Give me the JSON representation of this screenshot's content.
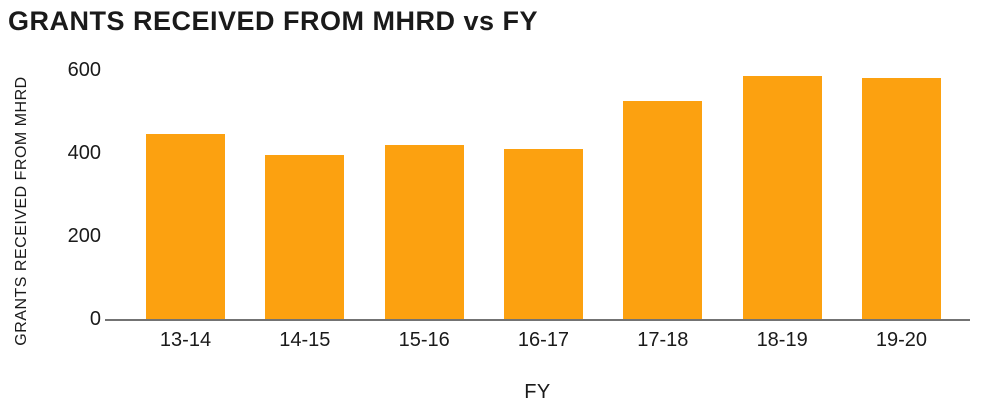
{
  "chart_data": {
    "type": "bar",
    "title": "GRANTS RECEIVED FROM MHRD vs FY",
    "xlabel": "FY",
    "ylabel": "GRANTS RECEIVED FROM MHRD",
    "categories": [
      "13-14",
      "14-15",
      "15-16",
      "16-17",
      "17-18",
      "18-19",
      "19-20"
    ],
    "values": [
      445,
      395,
      420,
      410,
      525,
      585,
      580
    ],
    "ylim": [
      0,
      600
    ],
    "yticks": [
      0,
      200,
      400,
      600
    ],
    "grid": false,
    "legend_position": "none",
    "bar_color": "#FCA110",
    "axis_line_color": "#737373",
    "text_color": "#1a1a1a",
    "background_color": "#ffffff"
  }
}
